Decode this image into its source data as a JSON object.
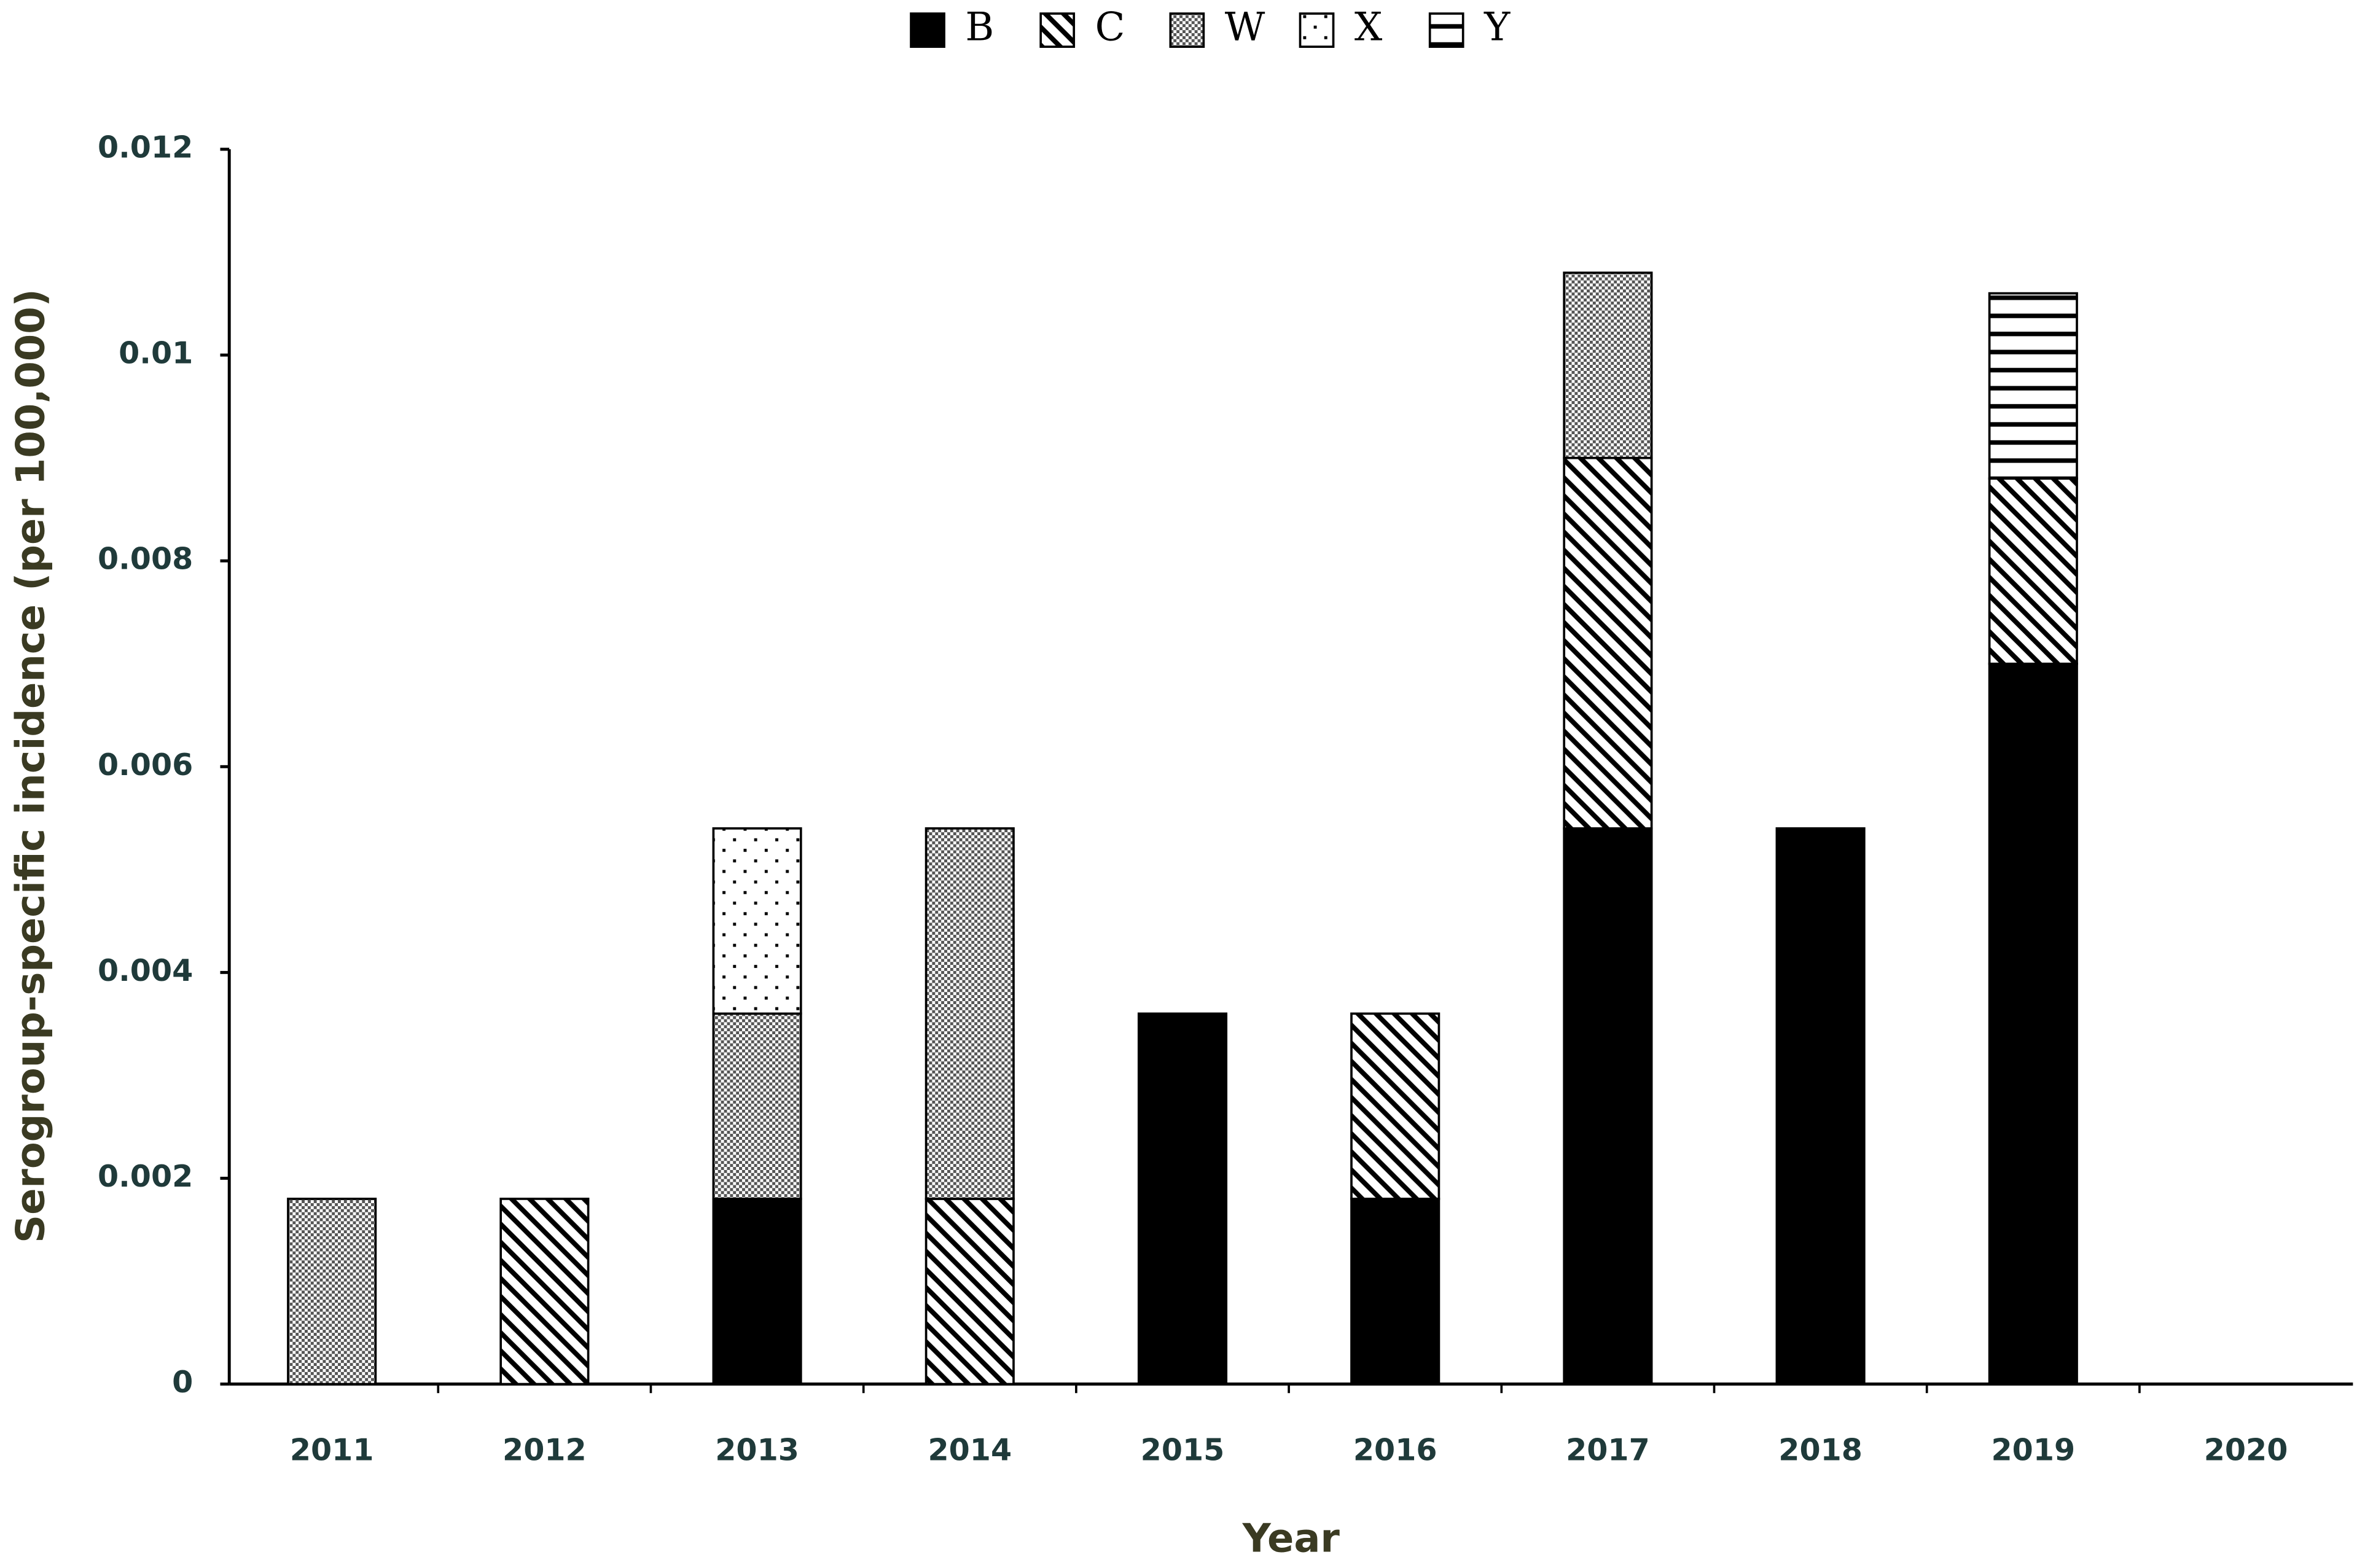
{
  "chart_data": {
    "type": "stacked-bar",
    "x_label": "Year",
    "y_label": "Serogroup-specific incidence (per 100,000)",
    "categories": [
      "2011",
      "2012",
      "2013",
      "2014",
      "2015",
      "2016",
      "2017",
      "2018",
      "2019",
      "2020"
    ],
    "series": [
      {
        "name": "B",
        "color": "#000000",
        "pattern": "solid",
        "values": [
          null,
          null,
          0.0018,
          null,
          0.0036,
          0.0018,
          0.0054,
          0.0054,
          0.007,
          null
        ]
      },
      {
        "name": "C",
        "color": "#000000",
        "pattern": "diagonal",
        "values": [
          null,
          0.0018,
          null,
          0.0018,
          null,
          0.0018,
          0.0036,
          null,
          0.0018,
          null
        ]
      },
      {
        "name": "W",
        "color": "#000000",
        "pattern": "checker",
        "values": [
          0.0018,
          null,
          0.0018,
          0.0036,
          null,
          null,
          0.0018,
          null,
          null,
          null
        ]
      },
      {
        "name": "X",
        "color": "#000000",
        "pattern": "dots",
        "values": [
          null,
          null,
          0.0018,
          null,
          null,
          null,
          null,
          null,
          null,
          null
        ]
      },
      {
        "name": "Y",
        "color": "#000000",
        "pattern": "horizontal",
        "values": [
          null,
          null,
          null,
          null,
          null,
          null,
          null,
          null,
          0.0018,
          null
        ]
      }
    ],
    "ylim": [
      0,
      0.012
    ],
    "yticks": [
      0,
      0.002,
      0.004,
      0.006,
      0.008,
      0.01,
      0.012
    ],
    "legend": "top"
  }
}
